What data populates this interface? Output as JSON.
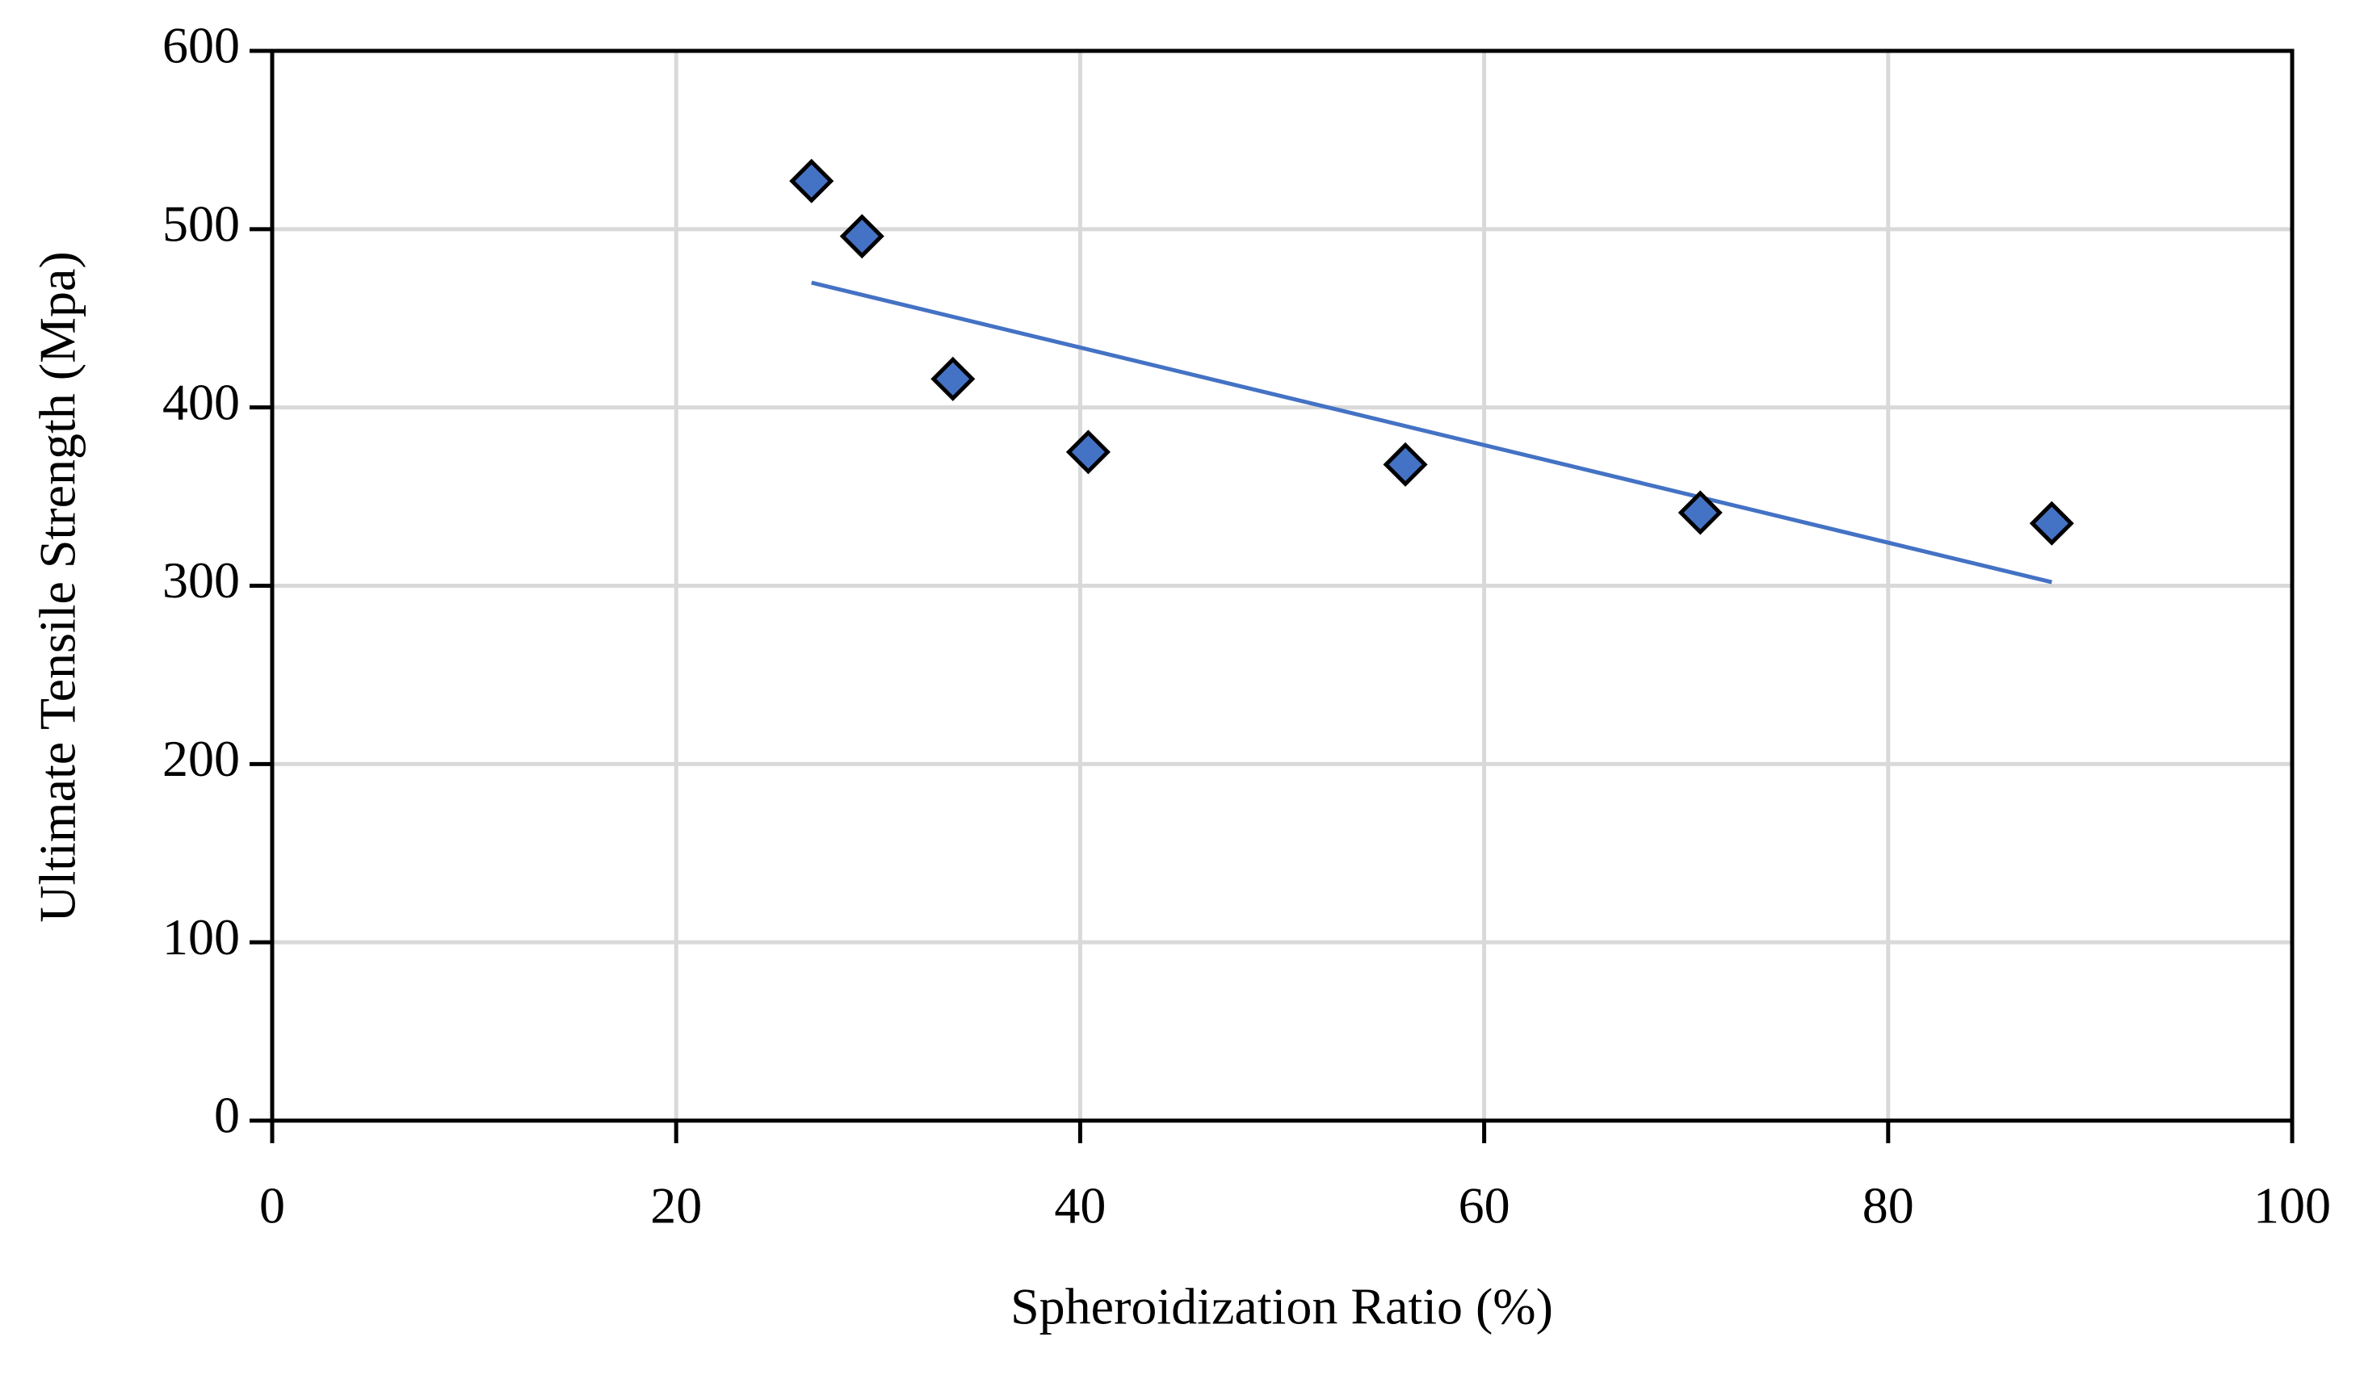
{
  "chart_data": {
    "type": "scatter",
    "x_label": "Spheroidization Ratio (%)",
    "y_label": "Ultimate Tensile Strength (Mpa)",
    "series": [
      {
        "color": "#4472c4",
        "x": [
          26.7,
          29.2,
          33.7,
          40.4,
          56.1,
          70.7,
          88.1
        ],
        "values": [
          527,
          496,
          416,
          375,
          368,
          341,
          335
        ]
      }
    ],
    "trendline": {
      "color": "#4472c4",
      "x": [
        26.7,
        88.1
      ],
      "values": [
        470,
        302
      ]
    },
    "xlim": [
      0,
      100
    ],
    "xticks": [
      0,
      20,
      40,
      60,
      80,
      100
    ],
    "ylim": [
      0,
      600
    ],
    "yticks": [
      0,
      100,
      200,
      300,
      400,
      500,
      600
    ],
    "grid": true
  }
}
